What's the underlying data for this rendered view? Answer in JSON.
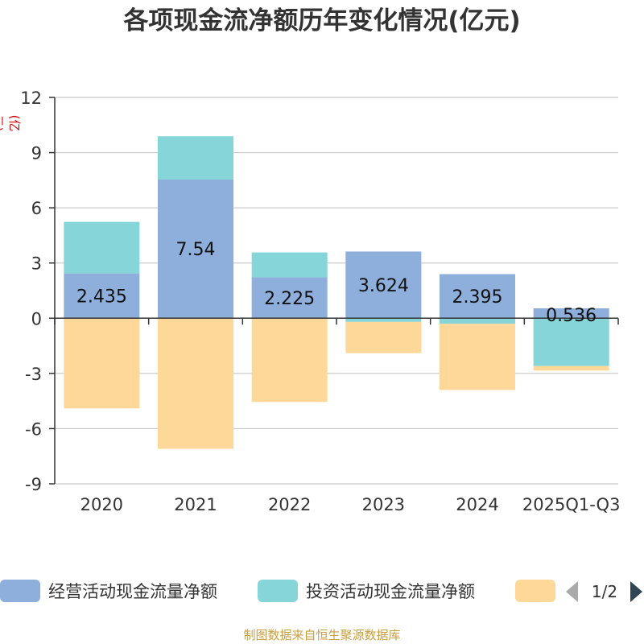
{
  "chart_data": {
    "type": "bar",
    "stacked": true,
    "title": "各项现金流净额历年变化情况(亿元)",
    "ylabel": "(亿元)",
    "xlabel": "",
    "ylim": [
      -9,
      12
    ],
    "yticks": [
      12,
      9,
      6,
      3,
      0,
      -3,
      -6,
      -9
    ],
    "grid": true,
    "categories": [
      "2020",
      "2021",
      "2022",
      "2023",
      "2024",
      "2025Q1-Q3"
    ],
    "series": [
      {
        "name": "经营活动现金流量净额",
        "color": "#8eaedb",
        "values": [
          2.435,
          7.54,
          2.225,
          3.624,
          2.395,
          0.536
        ],
        "labels": [
          "2.435",
          "7.54",
          "2.225",
          "3.624",
          "2.395",
          "0.536"
        ]
      },
      {
        "name": "投资活动现金流量净额",
        "color": "#86d5d8",
        "values": [
          2.8,
          2.35,
          1.35,
          -0.2,
          -0.3,
          -2.6
        ]
      },
      {
        "name": "",
        "color": "#fdd898",
        "values": [
          -4.9,
          -7.1,
          -4.55,
          -1.7,
          -3.6,
          -0.25
        ]
      }
    ],
    "legend": {
      "position": "bottom",
      "page": "1/2"
    }
  },
  "source_text": "制图数据来自恒生聚源数据库"
}
